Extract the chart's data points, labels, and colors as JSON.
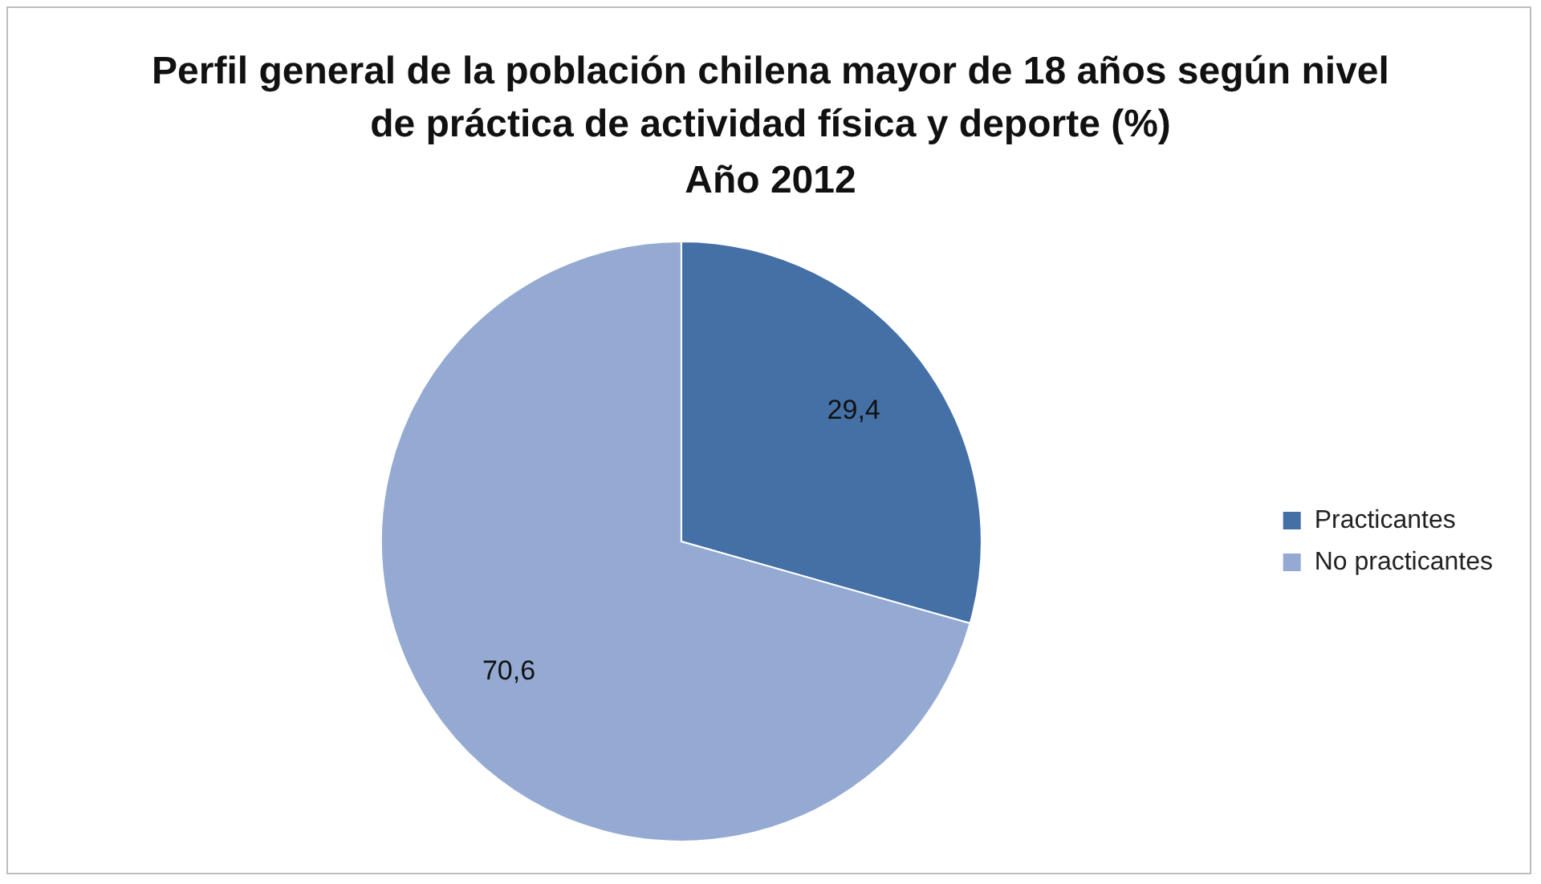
{
  "chart_data": {
    "type": "pie",
    "title": "Perfil general de la población chilena mayor de 18 años según nivel de práctica de actividad física y deporte (%)",
    "subtitle": "Año 2012",
    "categories": [
      "Practicantes",
      "No practicantes"
    ],
    "values": [
      29.4,
      70.6
    ],
    "value_labels": [
      "29,4",
      "70,6"
    ],
    "colors": [
      "#4470a6",
      "#95aad2"
    ],
    "legend": "right"
  }
}
